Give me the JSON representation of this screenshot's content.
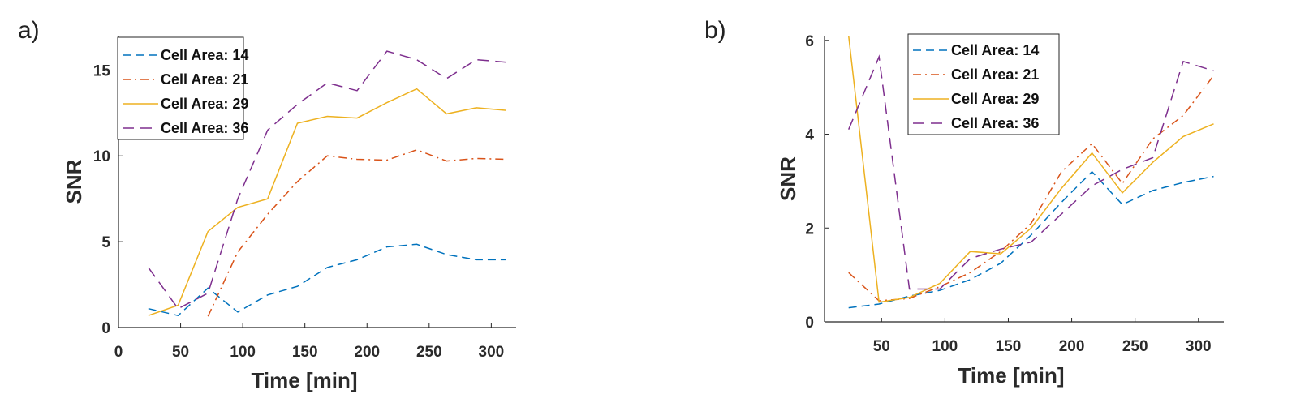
{
  "panels": [
    {
      "letter": "a)",
      "chart_data": {
        "type": "line",
        "xlabel": "Time [min]",
        "ylabel": "SNR",
        "xlim": [
          0,
          320
        ],
        "ylim": [
          0,
          17
        ],
        "xticks": [
          0,
          50,
          100,
          150,
          200,
          250,
          300
        ],
        "yticks": [
          0,
          5,
          10,
          15
        ],
        "grid": false,
        "legend_position": "top-left",
        "x": [
          24,
          48,
          72,
          96,
          120,
          144,
          168,
          192,
          216,
          240,
          264,
          288,
          312
        ],
        "series": [
          {
            "name": "Cell Area: 14",
            "color": "#0072BD",
            "dash": "dashed",
            "values": [
              1.1,
              0.7,
              2.3,
              0.9,
              1.9,
              2.4,
              3.5,
              3.95,
              4.7,
              4.85,
              4.25,
              3.95,
              3.95
            ]
          },
          {
            "name": "Cell Area: 21",
            "color": "#D95319",
            "dash": "dashdot",
            "values": [
              null,
              null,
              0.65,
              4.4,
              6.6,
              8.5,
              10.0,
              9.8,
              9.75,
              10.35,
              9.7,
              9.85,
              9.8
            ]
          },
          {
            "name": "Cell Area: 29",
            "color": "#EDB120",
            "dash": "solid",
            "values": [
              0.7,
              1.3,
              5.6,
              7.0,
              7.5,
              11.9,
              12.3,
              12.2,
              13.1,
              13.9,
              12.45,
              12.8,
              12.65
            ]
          },
          {
            "name": "Cell Area: 36",
            "color": "#7E2F8E",
            "dash": "longdash",
            "values": [
              3.5,
              1.1,
              2.0,
              7.5,
              11.5,
              13.0,
              14.25,
              13.8,
              16.1,
              15.6,
              14.5,
              15.6,
              15.45
            ]
          }
        ]
      }
    },
    {
      "letter": "b)",
      "chart_data": {
        "type": "line",
        "xlabel": "Time [min]",
        "ylabel": "SNR",
        "xlim": [
          5,
          320
        ],
        "ylim": [
          0,
          6.1
        ],
        "xticks": [
          50,
          100,
          150,
          200,
          250,
          300
        ],
        "yticks": [
          0,
          2,
          4,
          6
        ],
        "grid": false,
        "legend_position": "top-center",
        "x": [
          24,
          48,
          72,
          96,
          120,
          144,
          168,
          192,
          216,
          240,
          264,
          288,
          312
        ],
        "series": [
          {
            "name": "Cell Area: 14",
            "color": "#0072BD",
            "dash": "dashed",
            "values": [
              0.3,
              0.38,
              0.55,
              0.67,
              0.9,
              1.25,
              1.85,
              2.55,
              3.2,
              2.5,
              2.8,
              2.97,
              3.1
            ]
          },
          {
            "name": "Cell Area: 21",
            "color": "#D95319",
            "dash": "dashdot",
            "values": [
              1.05,
              0.45,
              0.5,
              0.75,
              1.05,
              1.5,
              2.1,
              3.2,
              3.8,
              2.95,
              3.9,
              4.4,
              5.25
            ]
          },
          {
            "name": "Cell Area: 29",
            "color": "#EDB120",
            "dash": "solid",
            "values": [
              6.1,
              0.42,
              0.52,
              0.82,
              1.5,
              1.45,
              2.0,
              2.85,
              3.6,
              2.75,
              3.4,
              3.95,
              4.22
            ]
          },
          {
            "name": "Cell Area: 36",
            "color": "#7E2F8E",
            "dash": "longdash",
            "values": [
              4.1,
              5.65,
              0.7,
              0.7,
              1.35,
              1.55,
              1.7,
              2.3,
              2.9,
              3.25,
              3.5,
              5.55,
              5.35
            ]
          }
        ]
      }
    }
  ]
}
